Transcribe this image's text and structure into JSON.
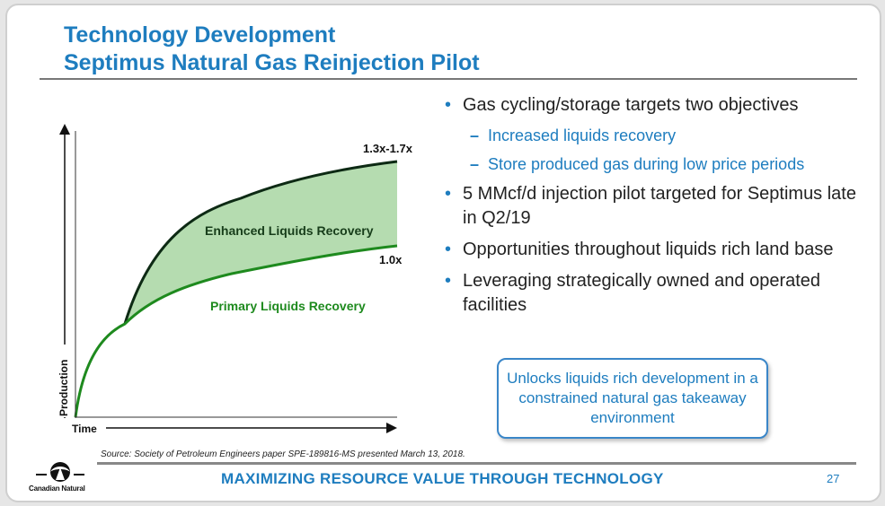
{
  "title": {
    "line1": "Technology Development",
    "line2": "Septimus Natural Gas Reinjection Pilot"
  },
  "chart_data": {
    "type": "area",
    "xlabel": "Time",
    "ylabel": "Production",
    "regions": [
      {
        "name": "Enhanced Liquids Recovery",
        "color": "#b5dcb0"
      },
      {
        "name": "Primary Liquids Recovery",
        "color": "#1e8a1e"
      }
    ],
    "curve_labels": {
      "enhanced": "1.3x-1.7x",
      "primary": "1.0x"
    },
    "region_labels": {
      "enhanced": "Enhanced Liquids Recovery",
      "primary": "Primary Liquids Recovery"
    },
    "colors": {
      "enhanced_fill": "#b5dcb0",
      "enhanced_line": "#0d2a14",
      "primary_line": "#1e8a1e",
      "enhanced_label": "#173d1a",
      "primary_label": "#1e8a1e"
    }
  },
  "bullets": [
    {
      "level": 1,
      "text": "Gas cycling/storage targets two objectives"
    },
    {
      "level": 2,
      "text": "Increased liquids recovery"
    },
    {
      "level": 2,
      "text": "Store produced gas during low price periods"
    },
    {
      "level": 1,
      "text": "5 MMcf/d injection pilot targeted for Septimus late in Q2/19"
    },
    {
      "level": 1,
      "text": "Opportunities throughout liquids rich land base"
    },
    {
      "level": 1,
      "text": "Leveraging strategically owned and operated facilities"
    }
  ],
  "callout": "Unlocks liquids rich development in a constrained natural gas takeaway environment",
  "source": "Source: Society of Petroleum Engineers paper SPE-189816-MS presented March 13, 2018.",
  "footer": {
    "text": "MAXIMIZING RESOURCE VALUE THROUGH TECHNOLOGY",
    "page": "27"
  },
  "logo": {
    "text": "Canadian Natural",
    "icon": "canadian-natural-logo-icon"
  },
  "colors": {
    "accent": "#1e7dbf",
    "rule": "#777777"
  }
}
